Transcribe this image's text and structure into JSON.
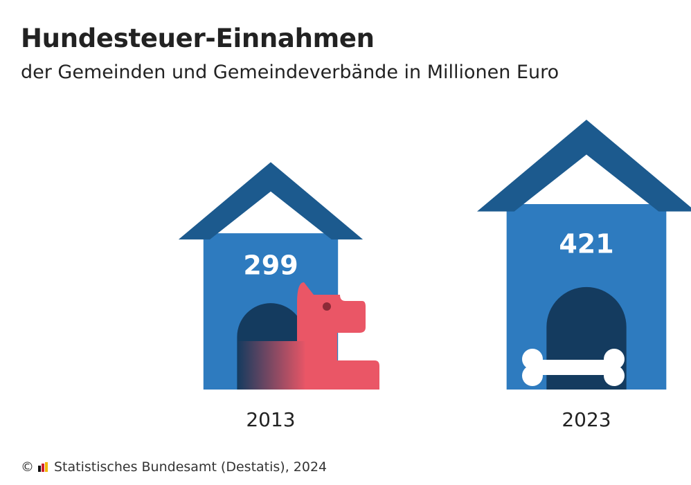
{
  "chart_data": {
    "type": "bar",
    "title": "Hundesteuer-Einnahmen",
    "subtitle": "der Gemeinden und Gemeindeverbände in Millionen Euro",
    "categories": [
      "2013",
      "2023"
    ],
    "values": [
      299,
      421
    ],
    "xlabel": "",
    "ylabel": "",
    "unit": "Millionen Euro",
    "grid": false
  },
  "footer": {
    "copyright": "©",
    "source": "Statistisches Bundesamt (Destatis), 2024"
  },
  "colors": {
    "roof": "#1c5a8e",
    "house": "#2e7bbf",
    "door": "#143b5f",
    "dog": "#ea5666",
    "bone": "#ffffff",
    "logo_black": "#111111",
    "logo_red": "#d0202b",
    "logo_gold": "#f2b705"
  },
  "icons": {
    "first": "dog-icon",
    "second": "bone-icon"
  }
}
